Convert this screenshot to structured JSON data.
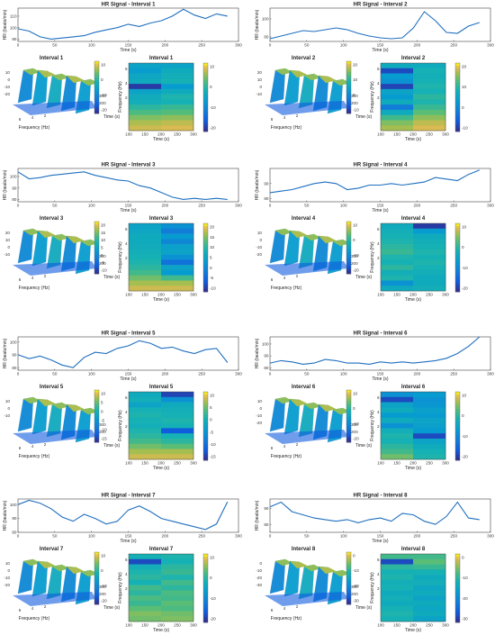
{
  "figure": {
    "background": "#ffffff"
  },
  "colors": {
    "line": "#1f6fbf",
    "axis": "#444444"
  },
  "labels": {
    "hr_xlabel": "Time (s)",
    "hr_ylabel": "HR (beats/min)",
    "freq": "Frequency (Hz)",
    "time": "Time (s)"
  },
  "chart_data": [
    {
      "type": "line",
      "title": "HR Signal - Interval 1",
      "xlabel": "Time (s)",
      "ylabel": "HR (beats/min)",
      "xlim": [
        0,
        300
      ],
      "ylim": [
        88,
        117
      ],
      "xticks": [
        0,
        50,
        100,
        150,
        200,
        250,
        300
      ],
      "yticks": [
        90,
        100,
        110
      ],
      "x": [
        0,
        15,
        30,
        45,
        60,
        75,
        90,
        105,
        120,
        135,
        150,
        165,
        180,
        195,
        210,
        225,
        240,
        255,
        270,
        285
      ],
      "y": [
        99,
        97,
        92,
        90,
        91,
        92,
        93,
        96,
        98,
        100,
        103,
        101,
        104,
        106,
        110,
        116,
        111,
        108,
        112,
        110
      ]
    },
    {
      "type": "line",
      "title": "HR Signal - Interval 2",
      "xlabel": "Time (s)",
      "ylabel": "HR (beats/min)",
      "xlim": [
        0,
        300
      ],
      "ylim": [
        75,
        112
      ],
      "xticks": [
        0,
        50,
        100,
        150,
        200,
        250,
        300
      ],
      "yticks": [
        80,
        100
      ],
      "x": [
        0,
        15,
        30,
        45,
        60,
        75,
        90,
        105,
        120,
        135,
        150,
        165,
        180,
        195,
        210,
        225,
        240,
        255,
        270,
        285
      ],
      "y": [
        78,
        81,
        84,
        87,
        86,
        88,
        90,
        88,
        84,
        81,
        79,
        78,
        79,
        90,
        108,
        98,
        85,
        84,
        92,
        96
      ]
    },
    {
      "type": "line",
      "title": "HR Signal - Interval 3",
      "xlabel": "Time (s)",
      "ylabel": "HR (beats/min)",
      "xlim": [
        0,
        300
      ],
      "ylim": [
        78,
        107
      ],
      "xticks": [
        0,
        50,
        100,
        150,
        200,
        250,
        300
      ],
      "yticks": [
        80,
        90,
        100
      ],
      "x": [
        0,
        15,
        30,
        45,
        60,
        75,
        90,
        105,
        120,
        135,
        150,
        165,
        180,
        195,
        210,
        225,
        240,
        255,
        270,
        285
      ],
      "y": [
        104,
        98,
        99,
        101,
        102,
        103,
        104,
        101,
        99,
        97,
        96,
        92,
        90,
        86,
        82,
        80,
        81,
        80,
        81,
        80
      ]
    },
    {
      "type": "line",
      "title": "HR Signal - Interval 4",
      "xlabel": "Time (s)",
      "ylabel": "HR (beats/min)",
      "xlim": [
        0,
        300
      ],
      "ylim": [
        78,
        100
      ],
      "xticks": [
        0,
        50,
        100,
        150,
        200,
        250,
        300
      ],
      "yticks": [
        80,
        90
      ],
      "x": [
        0,
        15,
        30,
        45,
        60,
        75,
        90,
        105,
        120,
        135,
        150,
        165,
        180,
        195,
        210,
        225,
        240,
        255,
        270,
        285
      ],
      "y": [
        84,
        85,
        86,
        88,
        90,
        91,
        90,
        86,
        87,
        89,
        89,
        90,
        89,
        90,
        91,
        94,
        93,
        92,
        96,
        99
      ]
    },
    {
      "type": "line",
      "title": "HR Signal - Interval 5",
      "xlabel": "Time (s)",
      "ylabel": "HR (beats/min)",
      "xlim": [
        0,
        300
      ],
      "ylim": [
        78,
        104
      ],
      "xticks": [
        0,
        50,
        100,
        150,
        200,
        250,
        300
      ],
      "yticks": [
        80,
        90,
        100
      ],
      "x": [
        0,
        15,
        30,
        45,
        60,
        75,
        90,
        105,
        120,
        135,
        150,
        165,
        180,
        195,
        210,
        225,
        240,
        255,
        270,
        285
      ],
      "y": [
        90,
        87,
        89,
        86,
        82,
        80,
        88,
        92,
        91,
        95,
        97,
        101,
        99,
        95,
        96,
        93,
        91,
        94,
        95,
        84
      ]
    },
    {
      "type": "line",
      "title": "HR Signal - Interval 6",
      "xlabel": "Time (s)",
      "ylabel": "HR (beats/min)",
      "xlim": [
        0,
        300
      ],
      "ylim": [
        78,
        106
      ],
      "xticks": [
        0,
        50,
        100,
        150,
        200,
        250,
        300
      ],
      "yticks": [
        80,
        90,
        100
      ],
      "x": [
        0,
        15,
        30,
        45,
        60,
        75,
        90,
        105,
        120,
        135,
        150,
        165,
        180,
        195,
        210,
        225,
        240,
        255,
        270,
        285
      ],
      "y": [
        84,
        86,
        85,
        83,
        84,
        87,
        86,
        84,
        84,
        83,
        85,
        84,
        85,
        84,
        85,
        86,
        88,
        92,
        98,
        106
      ]
    },
    {
      "type": "line",
      "title": "HR Signal - Interval 7",
      "xlabel": "Time (s)",
      "ylabel": "HR (beats/min)",
      "xlim": [
        0,
        300
      ],
      "ylim": [
        80,
        104
      ],
      "xticks": [
        0,
        50,
        100,
        150,
        200,
        250,
        300
      ],
      "yticks": [
        80,
        90,
        100
      ],
      "x": [
        0,
        15,
        30,
        45,
        60,
        75,
        90,
        105,
        120,
        135,
        150,
        165,
        180,
        195,
        210,
        225,
        240,
        255,
        270,
        285
      ],
      "y": [
        100,
        103,
        101,
        97,
        91,
        88,
        93,
        90,
        86,
        88,
        96,
        99,
        95,
        90,
        88,
        86,
        84,
        82,
        86,
        102
      ]
    },
    {
      "type": "line",
      "title": "HR Signal - Interval 8",
      "xlabel": "Time (s)",
      "ylabel": "HR (beats/min)",
      "xlim": [
        0,
        300
      ],
      "ylim": [
        75,
        96
      ],
      "xticks": [
        0,
        50,
        100,
        150,
        200,
        250,
        300
      ],
      "yticks": [
        80,
        90
      ],
      "x": [
        0,
        15,
        30,
        45,
        60,
        75,
        90,
        105,
        120,
        135,
        150,
        165,
        180,
        195,
        210,
        225,
        240,
        255,
        270,
        285
      ],
      "y": [
        91,
        94,
        88,
        86,
        84,
        83,
        82,
        83,
        81,
        83,
        84,
        82,
        87,
        86,
        82,
        80,
        85,
        94,
        84,
        83
      ]
    }
  ],
  "surfaces": [
    {
      "title": "Interval 1",
      "zticks": [
        "10",
        "0",
        "-10",
        "-20"
      ],
      "fticks": [
        "6",
        "4",
        "2"
      ],
      "tticks": [
        "300",
        "200"
      ],
      "cb_ticks": [
        "10",
        "0",
        "-10",
        "-20"
      ]
    },
    {
      "title": "Interval 2",
      "zticks": [
        "20",
        "10",
        "0",
        "-10"
      ],
      "fticks": [
        "6",
        "4",
        "2"
      ],
      "tticks": [
        "300",
        "200"
      ],
      "cb_ticks": [
        "20",
        "10",
        "0",
        "-10"
      ]
    },
    {
      "title": "Interval 3",
      "zticks": [
        "20",
        "10",
        "0",
        "-10"
      ],
      "fticks": [
        "6",
        "4",
        "2"
      ],
      "tticks": [
        "300",
        "200"
      ],
      "cb_ticks": [
        "20",
        "15",
        "10",
        "5",
        "0",
        "-5",
        "-10"
      ]
    },
    {
      "title": "Interval 4",
      "zticks": [
        "10",
        "0",
        "-10",
        "-20"
      ],
      "fticks": [
        "6",
        "4",
        "2"
      ],
      "tticks": [
        "300",
        "200"
      ],
      "cb_ticks": [
        "10",
        "0",
        "-10",
        "-20"
      ]
    },
    {
      "title": "Interval 5",
      "zticks": [
        "10",
        "0",
        "-10"
      ],
      "fticks": [
        "6",
        "4",
        "2"
      ],
      "tticks": [
        "300",
        "200"
      ],
      "cb_ticks": [
        "10",
        "5",
        "0",
        "-5",
        "-10",
        "-15"
      ]
    },
    {
      "title": "Interval 6",
      "zticks": [
        "10",
        "0",
        "-10",
        "-20"
      ],
      "fticks": [
        "6",
        "4",
        "2"
      ],
      "tticks": [
        "300",
        "200"
      ],
      "cb_ticks": [
        "10",
        "0",
        "-10",
        "-20"
      ]
    },
    {
      "title": "Interval 7",
      "zticks": [
        "10",
        "0",
        "-10",
        "-20"
      ],
      "fticks": [
        "6",
        "4",
        "2"
      ],
      "tticks": [
        "300",
        "200"
      ],
      "cb_ticks": [
        "10",
        "0",
        "-10",
        "-20"
      ]
    },
    {
      "title": "Interval 8",
      "zticks": [
        "0",
        "-10",
        "-20",
        "-30"
      ],
      "fticks": [
        "6",
        "4",
        "2"
      ],
      "tticks": [
        "300",
        "200"
      ],
      "cb_ticks": [
        "0",
        "-10",
        "-20",
        "-30"
      ]
    }
  ],
  "spectrograms": [
    {
      "title": "Interval 1",
      "xlabel": "Time (s)",
      "ylabel": "Frequency (Hz)",
      "xticks": [
        "100",
        "150",
        "200",
        "250",
        "300"
      ],
      "yticks": [
        "6",
        "4",
        "2"
      ],
      "cb_ticks": [
        "10",
        "0",
        "-10",
        "-20"
      ],
      "bands": [
        [
          0.5,
          0.46,
          0.52,
          0.55,
          0.05,
          0.5,
          0.56,
          0.58,
          0.65,
          0.72,
          0.8,
          0.86,
          0.9
        ],
        [
          0.5,
          0.55,
          0.58,
          0.6,
          0.45,
          0.55,
          0.62,
          0.6,
          0.68,
          0.74,
          0.82,
          0.88,
          0.92
        ]
      ]
    },
    {
      "title": "Interval 2",
      "xlabel": "Time (s)",
      "ylabel": "Frequency (Hz)",
      "xticks": [
        "100",
        "150",
        "200",
        "250",
        "300"
      ],
      "yticks": [
        "6",
        "4",
        "2"
      ],
      "cb_ticks": [
        "20",
        "10",
        "0",
        "-10"
      ],
      "bands": [
        [
          0.55,
          0.1,
          0.45,
          0.4,
          0.08,
          0.5,
          0.45,
          0.55,
          0.3,
          0.55,
          0.7,
          0.8,
          0.85
        ],
        [
          0.55,
          0.6,
          0.58,
          0.6,
          0.62,
          0.6,
          0.65,
          0.62,
          0.68,
          0.75,
          0.82,
          0.88,
          0.92
        ]
      ]
    },
    {
      "title": "Interval 3",
      "xlabel": "Time (s)",
      "ylabel": "Frequency (Hz)",
      "xticks": [
        "100",
        "150",
        "200",
        "250",
        "300"
      ],
      "yticks": [
        "6",
        "4",
        "2"
      ],
      "cb_ticks": [
        "20",
        "15",
        "10",
        "5",
        "0",
        "-5",
        "-10"
      ],
      "bands": [
        [
          0.5,
          0.52,
          0.55,
          0.55,
          0.56,
          0.58,
          0.6,
          0.62,
          0.65,
          0.7,
          0.78,
          0.85,
          0.9
        ],
        [
          0.4,
          0.3,
          0.45,
          0.35,
          0.48,
          0.5,
          0.4,
          0.25,
          0.5,
          0.45,
          0.7,
          0.85,
          0.9
        ]
      ]
    },
    {
      "title": "Interval 4",
      "xlabel": "Time (s)",
      "ylabel": "Frequency (Hz)",
      "xticks": [
        "100",
        "150",
        "200",
        "250",
        "300"
      ],
      "yticks": [
        "6",
        "4",
        "2"
      ],
      "cb_ticks": [
        "10",
        "0",
        "-10",
        "-20"
      ],
      "bands": [
        [
          0.55,
          0.58,
          0.6,
          0.62,
          0.65,
          0.68,
          0.62,
          0.6,
          0.65,
          0.58,
          0.62,
          0.4,
          0.55
        ],
        [
          0.05,
          0.45,
          0.55,
          0.58,
          0.6,
          0.62,
          0.6,
          0.62,
          0.6,
          0.58,
          0.55,
          0.55,
          0.58
        ]
      ]
    },
    {
      "title": "Interval 5",
      "xlabel": "Time (s)",
      "ylabel": "Frequency (Hz)",
      "xticks": [
        "100",
        "150",
        "200",
        "250",
        "300"
      ],
      "yticks": [
        "6",
        "4",
        "2"
      ],
      "cb_ticks": [
        "10",
        "5",
        "0",
        "-5",
        "-10",
        "-15"
      ],
      "bands": [
        [
          0.55,
          0.58,
          0.5,
          0.6,
          0.62,
          0.6,
          0.58,
          0.62,
          0.65,
          0.7,
          0.78,
          0.85,
          0.9
        ],
        [
          0.08,
          0.4,
          0.55,
          0.58,
          0.6,
          0.62,
          0.6,
          0.15,
          0.6,
          0.65,
          0.75,
          0.85,
          0.9
        ]
      ]
    },
    {
      "title": "Interval 6",
      "xlabel": "Time (s)",
      "ylabel": "Frequency (Hz)",
      "xticks": [
        "100",
        "150",
        "200",
        "250",
        "300"
      ],
      "yticks": [
        "6",
        "4",
        "2"
      ],
      "cb_ticks": [
        "10",
        "0",
        "-10",
        "-20"
      ],
      "bands": [
        [
          0.4,
          0.1,
          0.5,
          0.55,
          0.45,
          0.55,
          0.4,
          0.58,
          0.62,
          0.6,
          0.65,
          0.7,
          0.78
        ],
        [
          0.45,
          0.4,
          0.42,
          0.48,
          0.45,
          0.5,
          0.48,
          0.45,
          0.1,
          0.5,
          0.55,
          0.6,
          0.62
        ]
      ]
    },
    {
      "title": "Interval 7",
      "xlabel": "Time (s)",
      "ylabel": "Frequency (Hz)",
      "xticks": [
        "100",
        "150",
        "200",
        "250",
        "300"
      ],
      "yticks": [
        "6",
        "4",
        "2"
      ],
      "cb_ticks": [
        "10",
        "0",
        "-10",
        "-20"
      ],
      "bands": [
        [
          0.6,
          0.1,
          0.58,
          0.62,
          0.65,
          0.6,
          0.7,
          0.65,
          0.72,
          0.68,
          0.75,
          0.8,
          0.78
        ],
        [
          0.62,
          0.6,
          0.65,
          0.68,
          0.62,
          0.7,
          0.65,
          0.72,
          0.7,
          0.75,
          0.72,
          0.78,
          0.8
        ]
      ]
    },
    {
      "title": "Interval 8",
      "xlabel": "Time (s)",
      "ylabel": "Frequency (Hz)",
      "xticks": [
        "100",
        "150",
        "200",
        "250",
        "300"
      ],
      "yticks": [
        "6",
        "4",
        "2"
      ],
      "cb_ticks": [
        "0",
        "-10",
        "-20",
        "-30"
      ],
      "bands": [
        [
          0.7,
          0.1,
          0.65,
          0.6,
          0.62,
          0.58,
          0.6,
          0.55,
          0.58,
          0.55,
          0.6,
          0.62,
          0.6
        ],
        [
          0.7,
          0.75,
          0.68,
          0.6,
          0.55,
          0.58,
          0.52,
          0.55,
          0.5,
          0.55,
          0.52,
          0.55,
          0.5
        ]
      ]
    }
  ]
}
